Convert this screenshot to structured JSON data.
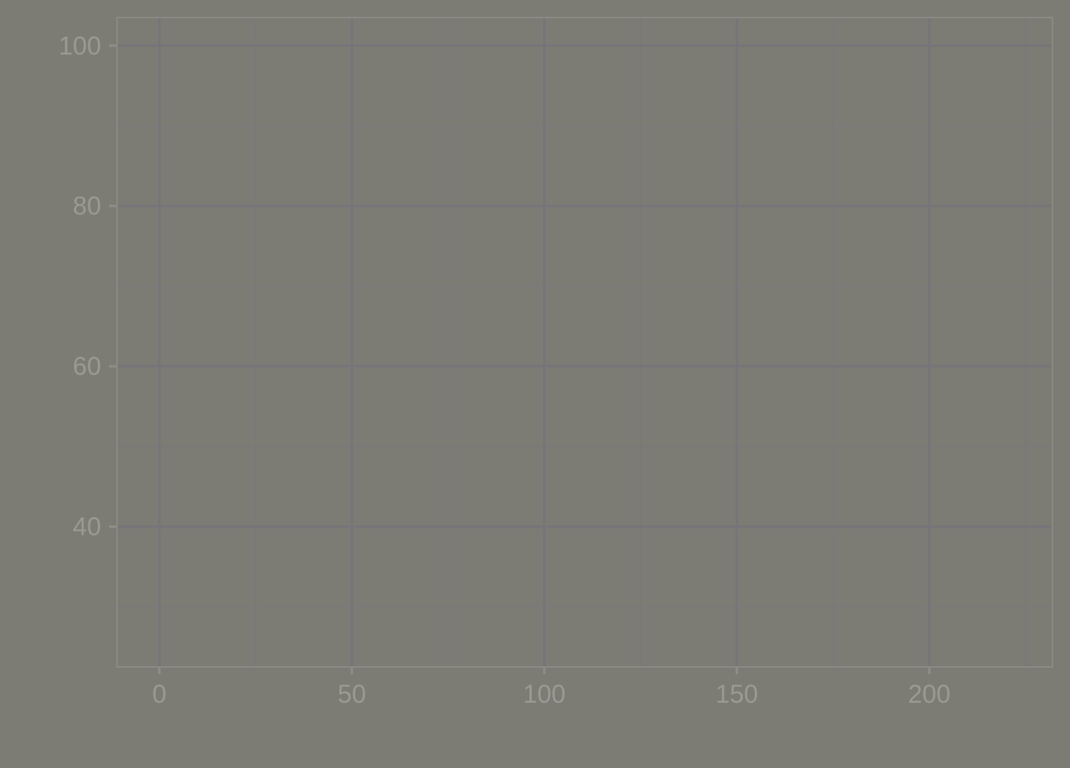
{
  "chart_data": {
    "type": "scatter",
    "title": "",
    "xlabel": "",
    "ylabel": "",
    "xlim": [
      -11,
      232
    ],
    "ylim": [
      22.5,
      103.5
    ],
    "x_ticks": [
      0,
      50,
      100,
      150,
      200
    ],
    "x_tick_labels": [
      "0",
      "50",
      "100",
      "150",
      "200"
    ],
    "x_minor_ticks": [
      25,
      75,
      125,
      175,
      225
    ],
    "y_ticks": [
      40,
      60,
      80,
      100
    ],
    "y_tick_labels": [
      "40",
      "60",
      "80",
      "100"
    ],
    "y_minor_ticks": [
      30,
      50,
      70,
      90
    ],
    "series": [],
    "grid": true,
    "colors": {
      "background": "#7c7c75",
      "panel_border": "#8e8e88",
      "major_grid": "#75757a",
      "minor_grid": "#79797a",
      "tick_label": "#9a9a93"
    }
  }
}
